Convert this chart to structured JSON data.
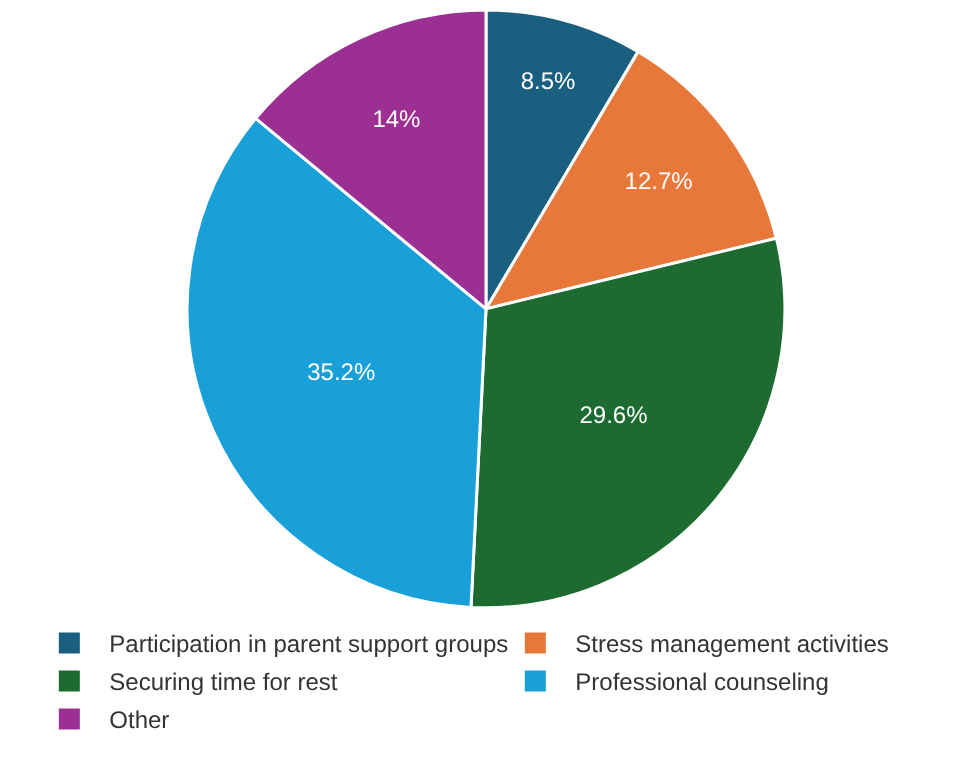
{
  "chart_data": {
    "type": "pie",
    "categories": [
      "Participation in parent support groups",
      "Stress management activities",
      "Securing time for rest",
      "Professional counseling",
      "Other"
    ],
    "values": [
      8.5,
      12.7,
      29.6,
      35.2,
      14
    ],
    "value_labels": [
      "8.5%",
      "12.7%",
      "29.6%",
      "35.2%",
      "14%"
    ],
    "colors": [
      "#1a5e80",
      "#e8773a",
      "#1e6b32",
      "#1aa0d8",
      "#9b2f92"
    ],
    "legend": "bottom"
  }
}
